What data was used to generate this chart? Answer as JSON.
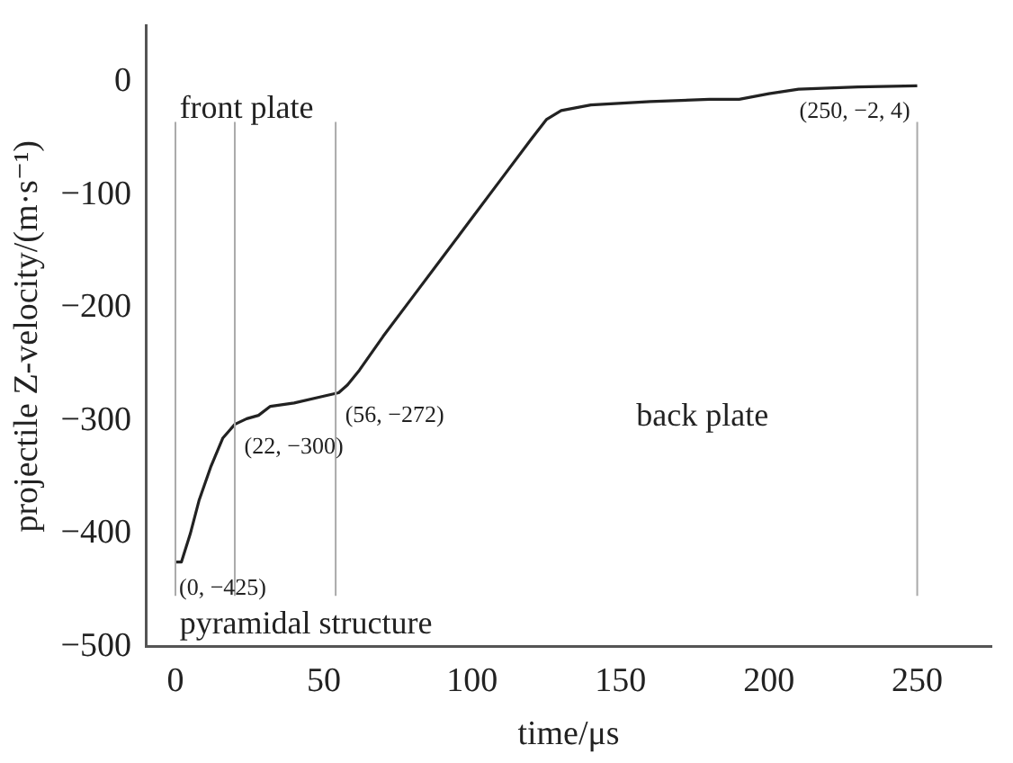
{
  "chart_data": {
    "type": "line",
    "xlabel": "time/μs",
    "ylabel": "projectile Z-velocity/(m·s⁻¹)",
    "x": [
      0,
      2,
      5,
      8,
      12,
      16,
      20,
      24,
      28,
      32,
      40,
      50,
      55,
      58,
      62,
      70,
      80,
      90,
      100,
      110,
      120,
      125,
      130,
      140,
      160,
      180,
      190,
      200,
      210,
      230,
      250
    ],
    "series": [
      {
        "color": "#222222",
        "values": [
          -425,
          -425,
          -400,
          -370,
          -340,
          -315,
          -303,
          -298,
          -295,
          -287,
          -284,
          -278,
          -275,
          -268,
          -255,
          -225,
          -190,
          -155,
          -120,
          -85,
          -50,
          -33,
          -25,
          -20,
          -17,
          -15,
          -15,
          -10,
          -6,
          -4,
          -3
        ]
      }
    ],
    "xlim": [
      -10,
      275
    ],
    "xticks": [
      0,
      50,
      100,
      150,
      200,
      250
    ],
    "ylim": [
      -500,
      50
    ],
    "yticks": [
      -500,
      -400,
      -300,
      -200,
      -100,
      0
    ],
    "grid": false,
    "legend": false,
    "marker": "none",
    "line_style": "solid",
    "ref_lines": [
      {
        "axis": "x",
        "value": 0,
        "color": "#aaaaaa"
      },
      {
        "axis": "x",
        "value": 20,
        "color": "#aaaaaa"
      },
      {
        "axis": "x",
        "value": 54,
        "color": "#aaaaaa"
      },
      {
        "axis": "x",
        "value": 250,
        "color": "#aaaaaa"
      }
    ],
    "annotations": [
      "front plate",
      "pyramidal structure",
      "back plate",
      {
        "text": "(0, −425)",
        "x": 0,
        "y": -425
      },
      {
        "text": "(22, −300)",
        "x": 22,
        "y": -300
      },
      {
        "text": "(56, −272)",
        "x": 56,
        "y": -272
      },
      {
        "text": "(250, −2, 4)",
        "x": 250,
        "y": -3
      }
    ]
  }
}
